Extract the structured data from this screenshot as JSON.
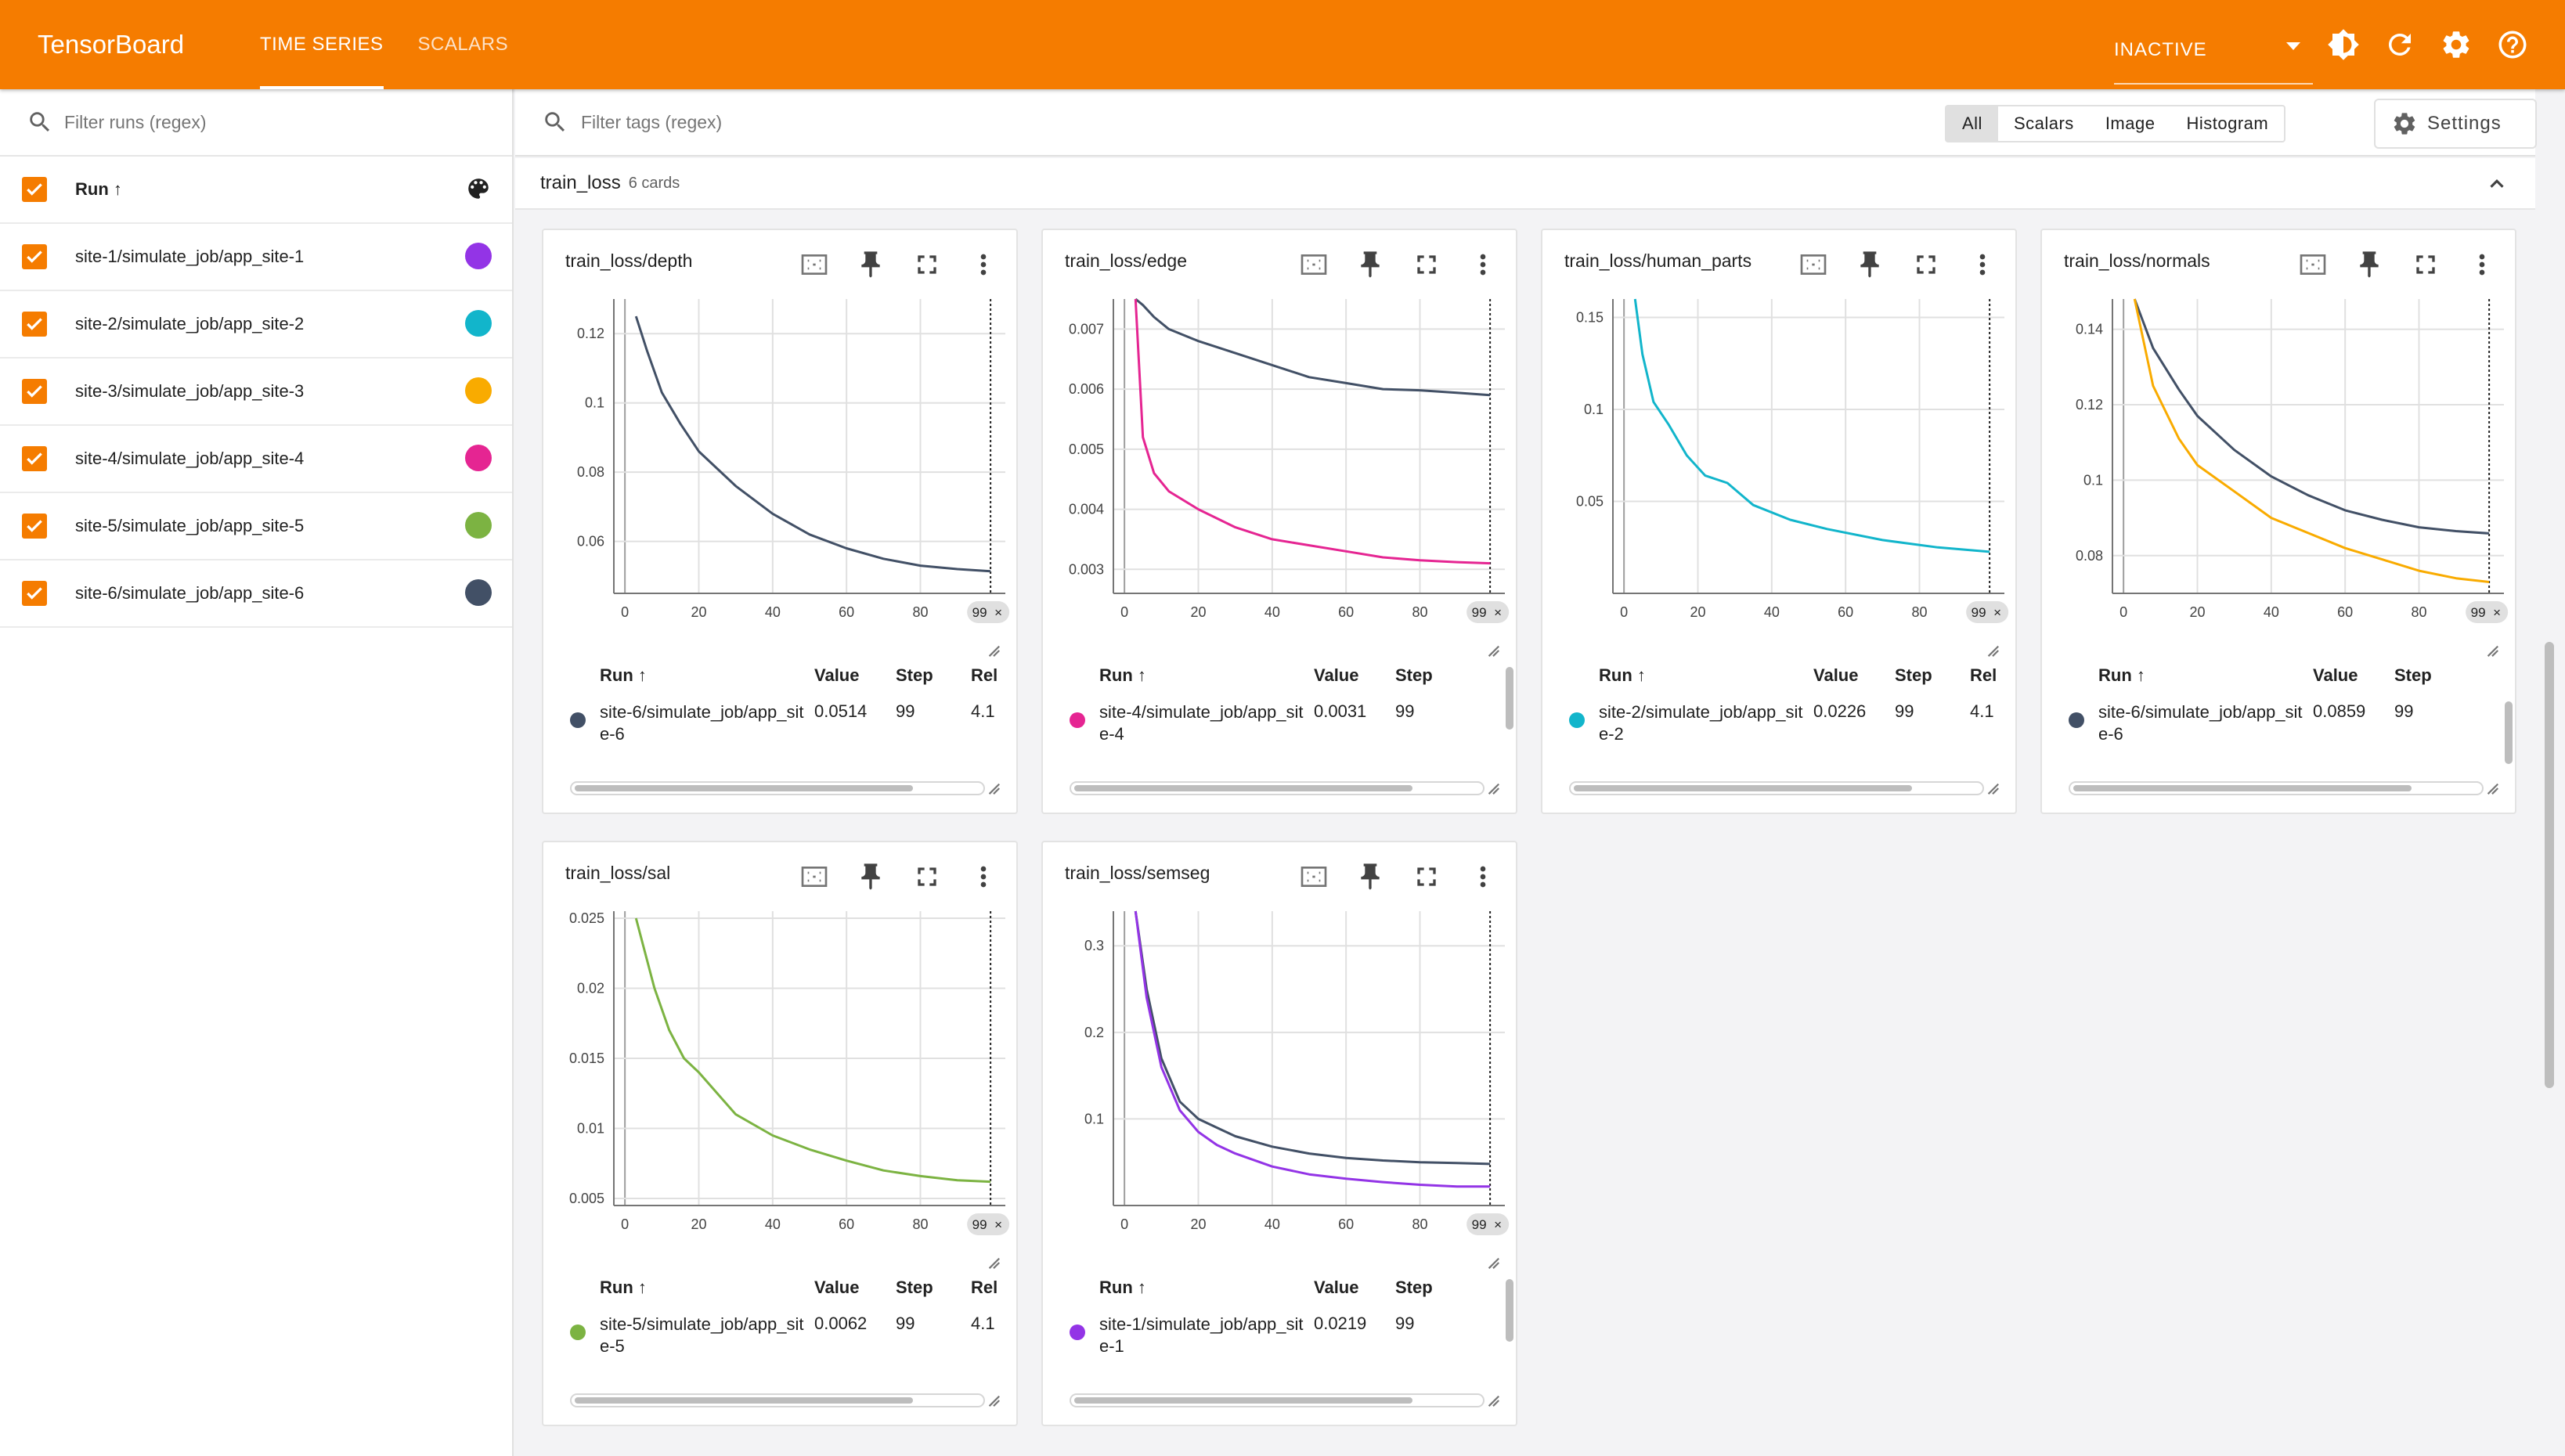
{
  "app": {
    "brand": "TensorBoard",
    "tabs": [
      {
        "label": "TIME SERIES",
        "active": true
      },
      {
        "label": "SCALARS",
        "active": false
      }
    ],
    "status": "INACTIVE",
    "icons": [
      "brightness-icon",
      "refresh-icon",
      "settings-gear-icon",
      "help-icon"
    ],
    "accent_color": "#f57c00"
  },
  "sidebar": {
    "filter_placeholder": "Filter runs (regex)",
    "run_header": "Run ↑",
    "runs": [
      {
        "name": "site-1/simulate_job/app_site-1",
        "color": "#9334e6",
        "checked": true
      },
      {
        "name": "site-2/simulate_job/app_site-2",
        "color": "#12b5cb",
        "checked": true
      },
      {
        "name": "site-3/simulate_job/app_site-3",
        "color": "#f9ab00",
        "checked": true
      },
      {
        "name": "site-4/simulate_job/app_site-4",
        "color": "#e52592",
        "checked": true
      },
      {
        "name": "site-5/simulate_job/app_site-5",
        "color": "#7cb342",
        "checked": true
      },
      {
        "name": "site-6/simulate_job/app_site-6",
        "color": "#425066",
        "checked": true
      }
    ]
  },
  "toolbar": {
    "tag_filter_placeholder": "Filter tags (regex)",
    "types": [
      "All",
      "Scalars",
      "Image",
      "Histogram"
    ],
    "active_type": "All",
    "settings_label": "Settings"
  },
  "group": {
    "name": "train_loss",
    "count_label": "6 cards"
  },
  "table_headers": {
    "run": "Run ↑",
    "value": "Value",
    "step": "Step",
    "relative": "Rel"
  },
  "cards": [
    {
      "title": "train_loss/depth",
      "run": "site-6/simulate_job/app_site-6",
      "run_color": "#425066",
      "value": "0.0514",
      "step": "99",
      "relative": "4.1",
      "step_marker": "99",
      "y_ticks": [
        "0.12",
        "0.1",
        "0.08",
        "0.06"
      ],
      "x_ticks": [
        "0",
        "20",
        "40",
        "60",
        "80"
      ]
    },
    {
      "title": "train_loss/edge",
      "run": "site-4/simulate_job/app_site-4",
      "run_color": "#e52592",
      "value": "0.0031",
      "step": "99",
      "relative": "",
      "step_marker": "99",
      "y_ticks": [
        "0.007",
        "0.006",
        "0.005",
        "0.004",
        "0.003"
      ],
      "x_ticks": [
        "0",
        "20",
        "40",
        "60",
        "80"
      ]
    },
    {
      "title": "train_loss/human_parts",
      "run": "site-2/simulate_job/app_site-2",
      "run_color": "#12b5cb",
      "value": "0.0226",
      "step": "99",
      "relative": "4.1",
      "step_marker": "99",
      "y_ticks": [
        "0.15",
        "0.1",
        "0.05"
      ],
      "x_ticks": [
        "0",
        "20",
        "40",
        "60",
        "80"
      ]
    },
    {
      "title": "train_loss/normals",
      "run": "site-6/simulate_job/app_site-6",
      "run_color": "#425066",
      "value": "0.0859",
      "step": "99",
      "relative": "",
      "step_marker": "99",
      "y_ticks": [
        "0.14",
        "0.12",
        "0.1",
        "0.08"
      ],
      "x_ticks": [
        "0",
        "20",
        "40",
        "60",
        "80"
      ]
    },
    {
      "title": "train_loss/sal",
      "run": "site-5/simulate_job/app_site-5",
      "run_color": "#7cb342",
      "value": "0.0062",
      "step": "99",
      "relative": "4.1",
      "step_marker": "99",
      "y_ticks": [
        "0.025",
        "0.02",
        "0.015",
        "0.01",
        "0.005"
      ],
      "x_ticks": [
        "0",
        "20",
        "40",
        "60",
        "80"
      ]
    },
    {
      "title": "train_loss/semseg",
      "run": "site-1/simulate_job/app_site-1",
      "run_color": "#9334e6",
      "value": "0.0219",
      "step": "99",
      "relative": "",
      "step_marker": "99",
      "y_ticks": [
        "0.3",
        "0.2",
        "0.1"
      ],
      "x_ticks": [
        "0",
        "20",
        "40",
        "60",
        "80"
      ]
    }
  ],
  "chart_data": [
    {
      "type": "line",
      "title": "train_loss/depth",
      "x": [
        3,
        6,
        10,
        15,
        20,
        30,
        40,
        50,
        60,
        70,
        80,
        90,
        99
      ],
      "ylim": [
        0.045,
        0.13
      ],
      "xlim": [
        -3,
        103
      ],
      "series": [
        {
          "name": "site-6/simulate_job/app_site-6",
          "color": "#425066",
          "values": [
            0.125,
            0.115,
            0.103,
            0.094,
            0.086,
            0.076,
            0.068,
            0.062,
            0.058,
            0.055,
            0.053,
            0.052,
            0.0514
          ]
        }
      ]
    },
    {
      "type": "line",
      "title": "train_loss/edge",
      "x": [
        3,
        5,
        8,
        12,
        20,
        30,
        40,
        50,
        60,
        70,
        80,
        90,
        99
      ],
      "ylim": [
        0.0026,
        0.0075
      ],
      "xlim": [
        -3,
        103
      ],
      "series": [
        {
          "name": "site-6/simulate_job/app_site-6",
          "color": "#425066",
          "values": [
            0.0075,
            0.0074,
            0.0072,
            0.007,
            0.0068,
            0.0066,
            0.0064,
            0.0062,
            0.0061,
            0.006,
            0.00598,
            0.00594,
            0.0059
          ]
        },
        {
          "name": "site-4/simulate_job/app_site-4",
          "color": "#e52592",
          "values": [
            0.0075,
            0.0052,
            0.0046,
            0.0043,
            0.004,
            0.0037,
            0.0035,
            0.0034,
            0.0033,
            0.0032,
            0.00315,
            0.00312,
            0.0031
          ]
        }
      ]
    },
    {
      "type": "line",
      "title": "train_loss/human_parts",
      "x": [
        3,
        5,
        8,
        12,
        17,
        22,
        28,
        35,
        45,
        55,
        70,
        85,
        99
      ],
      "ylim": [
        0.0,
        0.16
      ],
      "xlim": [
        -3,
        103
      ],
      "series": [
        {
          "name": "site-2/simulate_job/app_site-2",
          "color": "#12b5cb",
          "values": [
            0.16,
            0.13,
            0.104,
            0.092,
            0.075,
            0.064,
            0.06,
            0.048,
            0.04,
            0.035,
            0.029,
            0.025,
            0.0226
          ]
        }
      ]
    },
    {
      "type": "line",
      "title": "train_loss/normals",
      "x": [
        3,
        8,
        15,
        20,
        30,
        40,
        50,
        60,
        70,
        80,
        90,
        99
      ],
      "ylim": [
        0.07,
        0.148
      ],
      "xlim": [
        -3,
        103
      ],
      "series": [
        {
          "name": "site-6/simulate_job/app_site-6",
          "color": "#425066",
          "values": [
            0.148,
            0.135,
            0.124,
            0.117,
            0.108,
            0.101,
            0.096,
            0.092,
            0.0895,
            0.0875,
            0.0865,
            0.0859
          ]
        },
        {
          "name": "site-3/simulate_job/app_site-3",
          "color": "#f9ab00",
          "values": [
            0.148,
            0.125,
            0.111,
            0.104,
            0.097,
            0.09,
            0.086,
            0.082,
            0.079,
            0.076,
            0.074,
            0.073
          ]
        }
      ]
    },
    {
      "type": "line",
      "title": "train_loss/sal",
      "x": [
        3,
        5,
        8,
        12,
        16,
        20,
        25,
        30,
        40,
        50,
        60,
        70,
        80,
        90,
        99
      ],
      "ylim": [
        0.0045,
        0.0255
      ],
      "xlim": [
        -3,
        103
      ],
      "series": [
        {
          "name": "site-5/simulate_job/app_site-5",
          "color": "#7cb342",
          "values": [
            0.025,
            0.023,
            0.02,
            0.017,
            0.015,
            0.014,
            0.0125,
            0.011,
            0.0095,
            0.0085,
            0.0077,
            0.007,
            0.0066,
            0.0063,
            0.0062
          ]
        }
      ]
    },
    {
      "type": "line",
      "title": "train_loss/semseg",
      "x": [
        3,
        6,
        10,
        15,
        20,
        25,
        30,
        40,
        50,
        60,
        70,
        80,
        90,
        99
      ],
      "ylim": [
        0.0,
        0.34
      ],
      "xlim": [
        -3,
        103
      ],
      "series": [
        {
          "name": "site-6/simulate_job/app_site-6",
          "color": "#425066",
          "values": [
            0.34,
            0.25,
            0.17,
            0.12,
            0.1,
            0.09,
            0.08,
            0.068,
            0.06,
            0.055,
            0.052,
            0.05,
            0.049,
            0.048
          ]
        },
        {
          "name": "site-1/simulate_job/app_site-1",
          "color": "#9334e6",
          "values": [
            0.34,
            0.24,
            0.16,
            0.11,
            0.085,
            0.07,
            0.06,
            0.045,
            0.036,
            0.031,
            0.027,
            0.024,
            0.022,
            0.0219
          ]
        }
      ]
    }
  ]
}
